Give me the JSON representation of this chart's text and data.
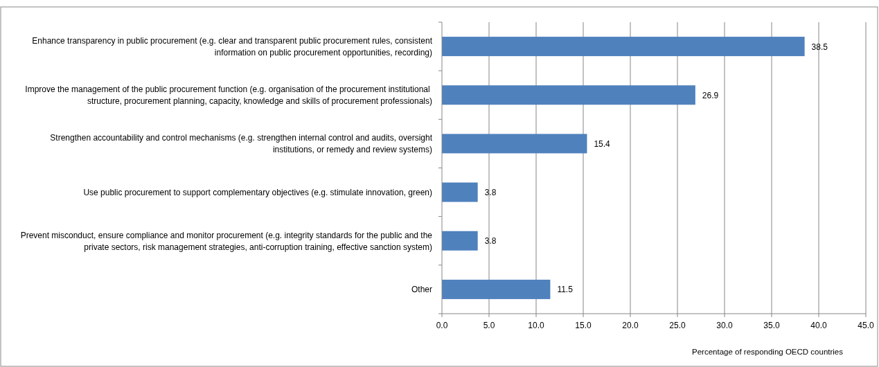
{
  "chart_data": {
    "type": "bar",
    "orientation": "horizontal",
    "xlabel": "Percentage of responding OECD countries",
    "categories": [
      "Enhance transparency in public procurement (e.g. clear and transparent public procurement rules, consistent information on public procurement opportunities, recording)",
      "Improve the management  of the public procurement function (e.g. organisation of the procurement institutional  structure, procurement planning, capacity, knowledge and skills of procurement professionals)",
      "Strengthen accountability and control mechanisms (e.g. strengthen internal control and audits, oversight institutions, or remedy and review systems)",
      "Use public procurement to support complementary objectives (e.g. stimulate innovation, green)",
      "Prevent misconduct, ensure compliance and monitor procurement (e.g. integrity standards for the public and the private sectors, risk management strategies, anti-corruption training, effective sanction system)",
      "Other"
    ],
    "values": [
      38.5,
      26.9,
      15.4,
      3.8,
      3.8,
      11.5
    ],
    "color": "#4f81bd",
    "xlim": [
      0,
      45
    ],
    "xticks": [
      {
        "value": 0,
        "label": "0.0"
      },
      {
        "value": 5,
        "label": "5.0"
      },
      {
        "value": 10,
        "label": "10.0"
      },
      {
        "value": 15,
        "label": "15.0"
      },
      {
        "value": 20,
        "label": "20.0"
      },
      {
        "value": 25,
        "label": "25.0"
      },
      {
        "value": 30,
        "label": "30.0"
      },
      {
        "value": 35,
        "label": "35.0"
      },
      {
        "value": 40,
        "label": "40.0"
      },
      {
        "value": 45,
        "label": "45.0"
      }
    ],
    "grid": "x",
    "data_labels": true
  }
}
